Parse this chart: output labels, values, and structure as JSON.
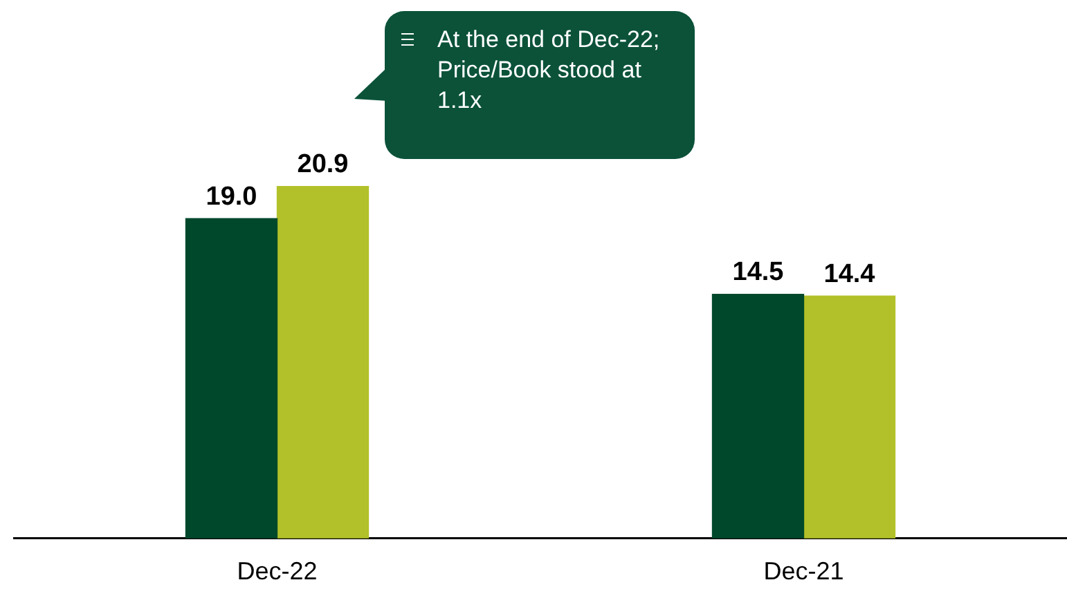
{
  "chart_data": {
    "type": "bar",
    "categories": [
      "Dec-22",
      "Dec-21"
    ],
    "series": [
      {
        "color": "#00482b",
        "values": [
          19.0,
          14.5
        ],
        "value_labels": [
          "19.0",
          "14.5"
        ]
      },
      {
        "color": "#b2c129",
        "values": [
          20.9,
          14.4
        ],
        "value_labels": [
          "20.9",
          "14.4"
        ]
      }
    ],
    "annotations": [
      "At the end of Dec-22; Price/Book stood at 1.1x"
    ],
    "grid": false,
    "legend": false
  }
}
